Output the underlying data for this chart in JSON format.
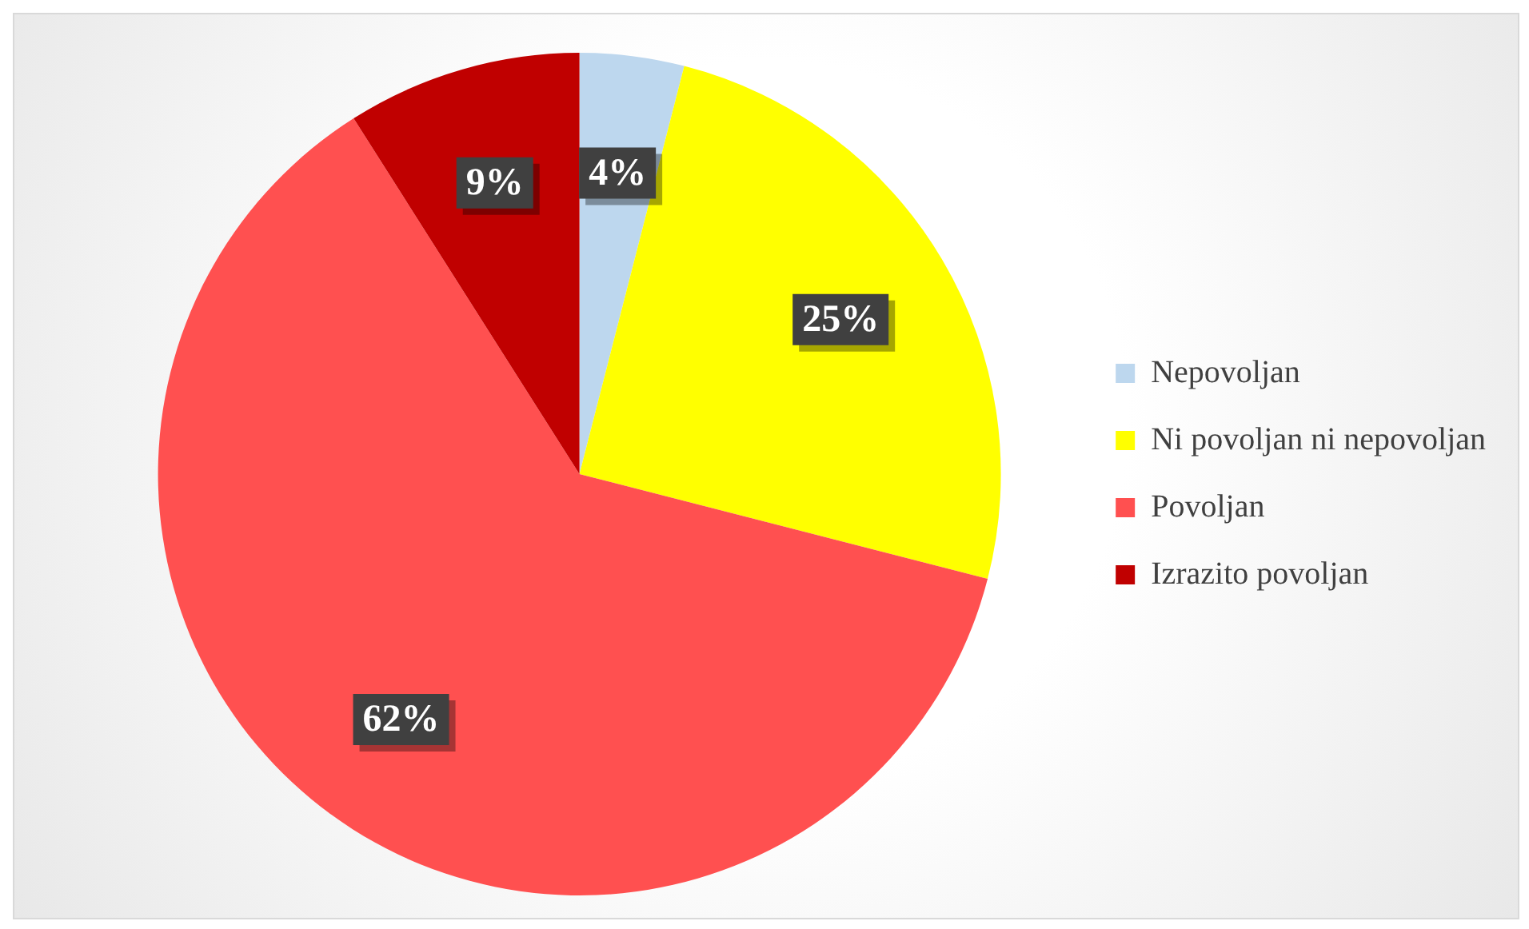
{
  "chart_data": {
    "type": "pie",
    "categories": [
      "Nepovoljan",
      "Ni povoljan ni nepovoljan",
      "Povoljan",
      "Izrazito povoljan"
    ],
    "values": [
      4,
      25,
      62,
      9
    ],
    "colors": [
      "#bdd7ee",
      "#ffff00",
      "#ff5050",
      "#c00000"
    ],
    "value_labels": [
      "4%",
      "25%",
      "62%",
      "9%"
    ],
    "legend": "right"
  }
}
